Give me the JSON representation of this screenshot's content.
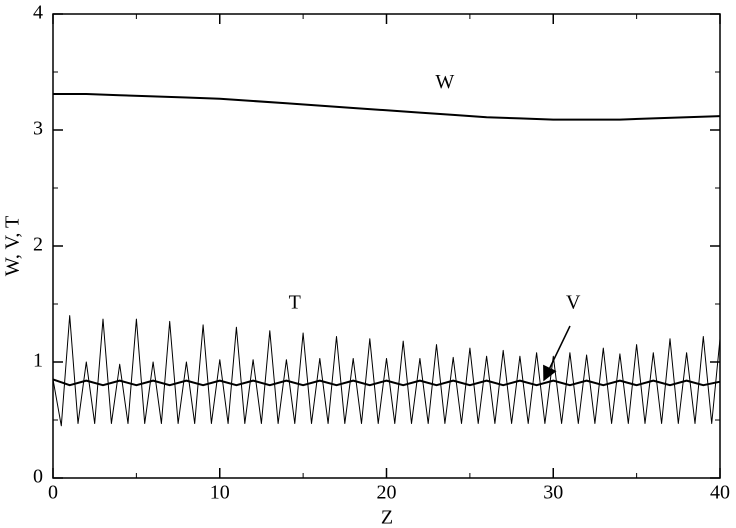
{
  "chart_data": {
    "type": "line",
    "xlabel": "Z",
    "ylabel": "W, V, T",
    "xlim": [
      0,
      40
    ],
    "ylim": [
      0,
      4
    ],
    "xticks": [
      0,
      10,
      20,
      30,
      40
    ],
    "yticks": [
      0,
      1,
      2,
      3,
      4
    ],
    "xminorticks": [
      5,
      15,
      25,
      35
    ],
    "yminorticks": [
      0.5,
      1.5,
      2.5,
      3.5
    ],
    "series": [
      {
        "name": "W",
        "color": "#000000",
        "width": 2,
        "x": [
          0,
          2,
          4,
          6,
          8,
          10,
          12,
          14,
          16,
          18,
          20,
          22,
          24,
          26,
          28,
          30,
          32,
          34,
          36,
          38,
          40
        ],
        "values": [
          3.31,
          3.31,
          3.3,
          3.29,
          3.28,
          3.27,
          3.25,
          3.23,
          3.21,
          3.19,
          3.17,
          3.15,
          3.13,
          3.11,
          3.1,
          3.09,
          3.09,
          3.09,
          3.1,
          3.11,
          3.12
        ]
      },
      {
        "name": "V",
        "color": "#000000",
        "width": 2,
        "x": [
          0,
          1,
          2,
          3,
          4,
          5,
          6,
          7,
          8,
          9,
          10,
          11,
          12,
          13,
          14,
          15,
          16,
          17,
          18,
          19,
          20,
          21,
          22,
          23,
          24,
          25,
          26,
          27,
          28,
          29,
          30,
          31,
          32,
          33,
          34,
          35,
          36,
          37,
          38,
          39,
          40
        ],
        "values": [
          0.85,
          0.8,
          0.84,
          0.8,
          0.84,
          0.8,
          0.84,
          0.8,
          0.84,
          0.8,
          0.84,
          0.8,
          0.84,
          0.8,
          0.84,
          0.8,
          0.84,
          0.8,
          0.84,
          0.8,
          0.84,
          0.8,
          0.84,
          0.8,
          0.84,
          0.8,
          0.84,
          0.8,
          0.84,
          0.8,
          0.84,
          0.8,
          0.84,
          0.8,
          0.84,
          0.8,
          0.84,
          0.8,
          0.84,
          0.8,
          0.83
        ]
      },
      {
        "name": "T",
        "color": "#000000",
        "width": 1,
        "x": [
          0,
          0.5,
          1,
          1.5,
          2,
          2.5,
          3,
          3.5,
          4,
          4.5,
          5,
          5.5,
          6,
          6.5,
          7,
          7.5,
          8,
          8.5,
          9,
          9.5,
          10,
          10.5,
          11,
          11.5,
          12,
          12.5,
          13,
          13.5,
          14,
          14.5,
          15,
          15.5,
          16,
          16.5,
          17,
          17.5,
          18,
          18.5,
          19,
          19.5,
          20,
          20.5,
          21,
          21.5,
          22,
          22.5,
          23,
          23.5,
          24,
          24.5,
          25,
          25.5,
          26,
          26.5,
          27,
          27.5,
          28,
          28.5,
          29,
          29.5,
          30,
          30.5,
          31,
          31.5,
          32,
          32.5,
          33,
          33.5,
          34,
          34.5,
          35,
          35.5,
          36,
          36.5,
          37,
          37.5,
          38,
          38.5,
          39,
          39.5,
          40
        ],
        "values": [
          0.85,
          0.45,
          1.4,
          0.47,
          1.0,
          0.47,
          1.37,
          0.47,
          0.98,
          0.47,
          1.37,
          0.47,
          1.0,
          0.47,
          1.35,
          0.47,
          1.0,
          0.47,
          1.32,
          0.47,
          1.02,
          0.47,
          1.3,
          0.47,
          1.02,
          0.47,
          1.27,
          0.47,
          1.02,
          0.47,
          1.25,
          0.47,
          1.03,
          0.47,
          1.22,
          0.47,
          1.03,
          0.47,
          1.2,
          0.47,
          1.03,
          0.47,
          1.18,
          0.47,
          1.03,
          0.47,
          1.15,
          0.47,
          1.04,
          0.47,
          1.12,
          0.47,
          1.05,
          0.47,
          1.1,
          0.47,
          1.05,
          0.47,
          1.08,
          0.47,
          1.05,
          0.47,
          1.08,
          0.47,
          1.06,
          0.47,
          1.12,
          0.47,
          1.07,
          0.47,
          1.15,
          0.47,
          1.08,
          0.47,
          1.2,
          0.47,
          1.08,
          0.47,
          1.22,
          0.47,
          1.2
        ]
      }
    ],
    "annotations": [
      {
        "text": "W",
        "x": 23.5,
        "y": 3.4
      },
      {
        "text": "T",
        "x": 14.5,
        "y": 1.5
      },
      {
        "text": "V",
        "x": 31.2,
        "y": 1.5
      }
    ]
  }
}
